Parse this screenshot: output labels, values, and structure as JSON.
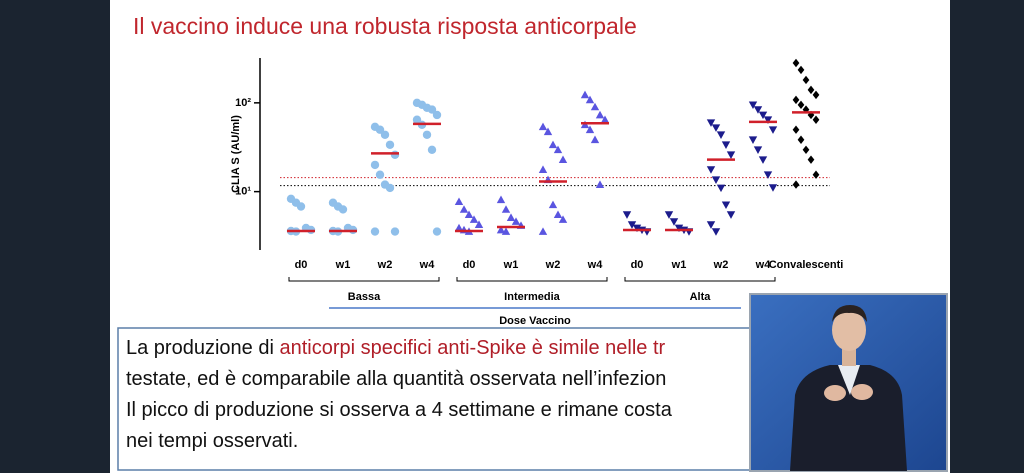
{
  "title": "Il vaccino induce una robusta risposta anticorpale",
  "chart_data": {
    "type": "dotplot",
    "ylabel": "CLIA S (AU/ml)",
    "categories": [
      "d0",
      "w1",
      "w2",
      "w4",
      "d0",
      "w1",
      "w2",
      "w4",
      "d0",
      "w1",
      "w2",
      "w4",
      "Convalescenti"
    ],
    "groups": [
      {
        "label": "Bassa",
        "from": 0,
        "to": 3
      },
      {
        "label": "Intermedia",
        "from": 4,
        "to": 7
      },
      {
        "label": "Alta",
        "from": 8,
        "to": 11
      }
    ],
    "group_title": "Dose Vaccino",
    "values": [
      [
        8.3,
        7.5,
        6.8,
        3.9,
        3.7,
        3.6,
        3.55
      ],
      [
        7.5,
        6.8,
        6.3,
        3.9,
        3.7,
        3.6,
        3.55
      ],
      [
        53.7,
        49.8,
        43.7,
        33.7,
        26,
        20,
        15.5,
        12,
        11,
        3.55,
        3.55
      ],
      [
        100,
        95,
        88,
        84,
        73,
        64.5,
        56.6,
        43.7,
        29.6,
        3.55
      ],
      [
        7.7,
        6.3,
        5.5,
        4.85,
        4.25,
        3.9,
        3.7,
        3.55
      ],
      [
        8.1,
        6.3,
        5.1,
        4.6,
        4.15,
        3.7,
        3.55
      ],
      [
        53.7,
        47.3,
        33.7,
        29.6,
        22.9,
        17.7,
        13.6,
        7.1,
        5.5,
        4.85,
        3.55
      ],
      [
        123,
        108,
        90,
        73,
        64.5,
        56.6,
        49.8,
        38.4,
        12
      ],
      [
        5.5,
        4.25,
        3.9,
        3.7,
        3.55
      ],
      [
        5.5,
        4.6,
        3.9,
        3.7,
        3.55
      ],
      [
        59.7,
        52.5,
        43.7,
        33.7,
        26,
        17.7,
        13.6,
        11,
        7.1,
        5.5,
        4.25,
        3.55
      ],
      [
        95,
        84,
        73,
        64.5,
        49.8,
        38.4,
        29.6,
        22.9,
        15.5,
        11.1
      ],
      [
        281,
        235,
        181,
        140,
        123,
        108,
        95,
        84,
        73,
        64.5,
        49.8,
        38.4,
        29.6,
        22.9,
        15.5,
        12
      ]
    ],
    "medians": [
      3.6,
      3.6,
      27,
      58,
      3.6,
      4.0,
      13,
      59,
      3.7,
      3.7,
      22.9,
      61,
      78
    ],
    "colors": [
      "#8fbfea",
      "#8fbfea",
      "#8fbfea",
      "#8fbfea",
      "#5a55e0",
      "#5a55e0",
      "#5a55e0",
      "#5a55e0",
      "#1c1c8c",
      "#1c1c8c",
      "#1c1c8c",
      "#1c1c8c",
      "#000000"
    ],
    "markers": [
      "circle",
      "circle",
      "circle",
      "circle",
      "triangle",
      "triangle",
      "triangle",
      "triangle",
      "triangle-down",
      "triangle-down",
      "triangle-down",
      "triangle-down",
      "diamond"
    ],
    "median_color": "#d0202a",
    "reference_lines": [
      {
        "value": 14.4,
        "color": "#d0202a"
      },
      {
        "value": 11.7,
        "color": "#000000"
      }
    ],
    "log_y": true,
    "ylim": [
      2.2,
      320
    ],
    "yticks": [
      {
        "value": 10,
        "label": "10¹"
      },
      {
        "value": 100,
        "label": "10²"
      }
    ]
  },
  "text_box": {
    "line1_start": "La produzione di ",
    "line1_highlight": "anticorpi specifici anti-Spike è simile nelle tr",
    "line2": "testate, ed è comparabile alla quantità osservata nell’infezion",
    "line3": "Il picco di produzione si osserva a 4 settimane e rimane costa",
    "line4": "nei tempi osservati."
  }
}
